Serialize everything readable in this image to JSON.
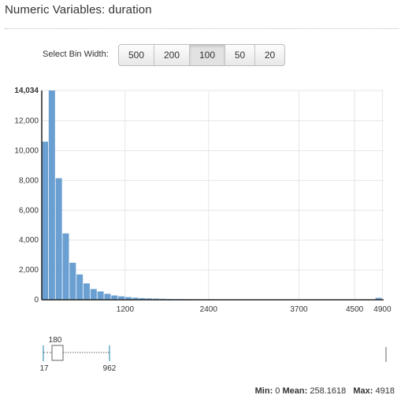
{
  "page": {
    "title": "Numeric Variables: duration"
  },
  "bin_control": {
    "label": "Select Bin Width:",
    "options": [
      "500",
      "200",
      "100",
      "50",
      "20"
    ],
    "selected": "100"
  },
  "chart_data": {
    "type": "bar",
    "bin_width": 100,
    "x_ticks": [
      "1200",
      "2400",
      "3700",
      "4500",
      "4900"
    ],
    "y_ticks": [
      "0",
      "2,000",
      "4,000",
      "6,000",
      "8,000",
      "10,000",
      "12,000",
      "14,034"
    ],
    "ylim": [
      0,
      14034
    ],
    "values": [
      10600,
      14034,
      8150,
      4450,
      2480,
      1700,
      1100,
      720,
      560,
      400,
      290,
      230,
      180,
      140,
      110,
      95,
      80,
      65,
      55,
      50,
      45,
      40,
      35,
      30,
      30,
      28,
      26,
      24,
      22,
      20,
      20,
      18,
      16,
      15,
      14,
      13,
      12,
      11,
      10,
      10,
      9,
      9,
      8,
      8,
      7,
      7,
      6,
      6,
      130
    ],
    "color": "#6a9fd1"
  },
  "boxplot": {
    "q1": "180",
    "whisker_low": "17",
    "whisker_high": "962"
  },
  "stats": {
    "min_label": "Min:",
    "min": "0",
    "mean_label": "Mean:",
    "mean": "258.1618",
    "max_label": "Max:",
    "max": "4918"
  }
}
